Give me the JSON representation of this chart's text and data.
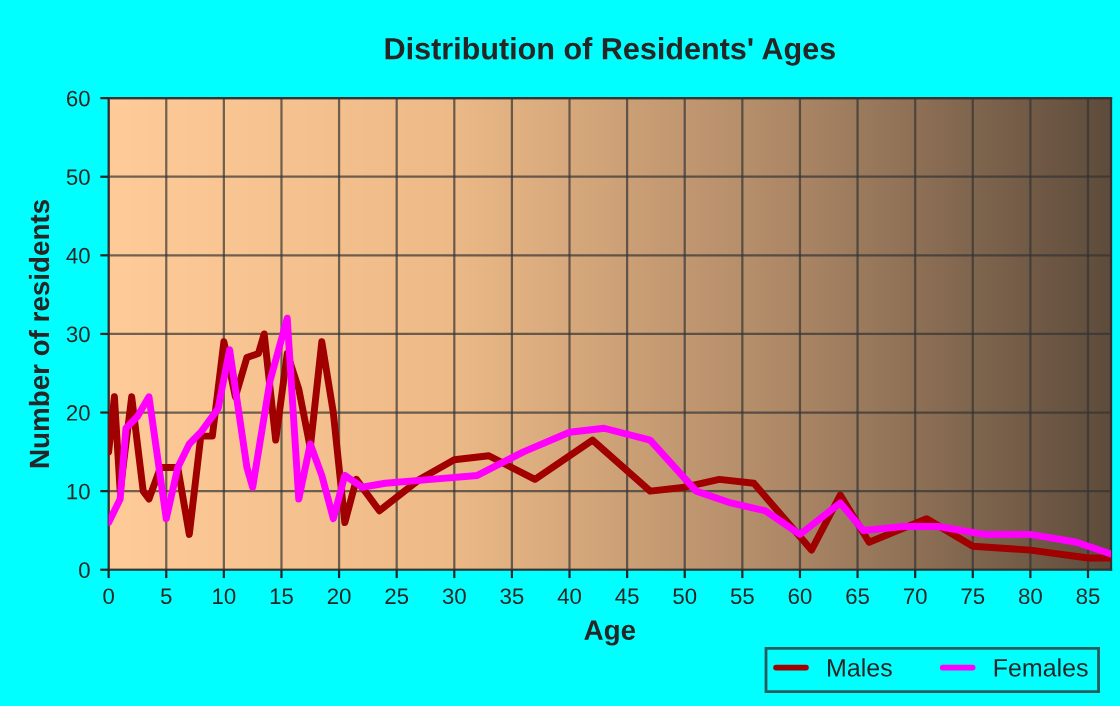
{
  "chart_data": {
    "type": "line",
    "title": "Distribution of Residents' Ages",
    "xlabel": "Age",
    "ylabel": "Number of residents",
    "xlim": [
      0,
      87
    ],
    "xticks": [
      0,
      5,
      10,
      15,
      20,
      25,
      30,
      35,
      40,
      45,
      50,
      55,
      60,
      65,
      70,
      75,
      80,
      85
    ],
    "ylim": [
      0,
      60
    ],
    "yticks": [
      0,
      10,
      20,
      30,
      40,
      50,
      60
    ],
    "grid": true,
    "legend": "bottom right",
    "marker": "none",
    "line_style": "solid",
    "series": [
      {
        "name": "Males",
        "color": "#a00000",
        "x": [
          0,
          0.5,
          1,
          2,
          3,
          3.5,
          4.5,
          6,
          7,
          8,
          9,
          10,
          11,
          12,
          13,
          13.5,
          14.5,
          15.5,
          16.5,
          17.5,
          18.5,
          19.5,
          20.5,
          21.5,
          23.5,
          27,
          30,
          33,
          37,
          42,
          47,
          50,
          53,
          56,
          61,
          63.5,
          66,
          71,
          75,
          80,
          85,
          87
        ],
        "values": [
          15,
          22,
          10,
          22,
          10,
          9,
          13,
          13,
          4.5,
          17,
          17,
          29,
          22,
          27,
          27.5,
          30,
          16.5,
          27.5,
          23,
          15.5,
          29,
          20,
          6,
          11.5,
          7.5,
          11.5,
          14,
          14.5,
          11.5,
          16.5,
          10,
          10.5,
          11.5,
          11,
          2.5,
          9.5,
          3.5,
          6.5,
          3,
          2.5,
          1.5,
          1.5
        ]
      },
      {
        "name": "Females",
        "color": "#ff00ff",
        "x": [
          0,
          1,
          1.5,
          2.5,
          3.5,
          5,
          6,
          7,
          8,
          9.5,
          10.5,
          12,
          12.5,
          14,
          15.5,
          16.5,
          17.5,
          18.5,
          19.5,
          20.5,
          22,
          24,
          28,
          32,
          36,
          40,
          43,
          47,
          51,
          54,
          57,
          60,
          63.5,
          65.5,
          69,
          72,
          76,
          80,
          84,
          87
        ],
        "values": [
          6,
          9,
          18,
          19.5,
          22,
          6.5,
          13,
          16,
          17.5,
          20.5,
          28,
          13,
          10.5,
          24,
          32,
          9,
          16,
          12,
          6.5,
          12,
          10.5,
          11,
          11.5,
          12,
          15,
          17.5,
          18,
          16.5,
          10,
          8.5,
          7.5,
          4.5,
          8.5,
          5,
          5.5,
          5.5,
          4.5,
          4.5,
          3.5,
          2
        ]
      }
    ]
  }
}
